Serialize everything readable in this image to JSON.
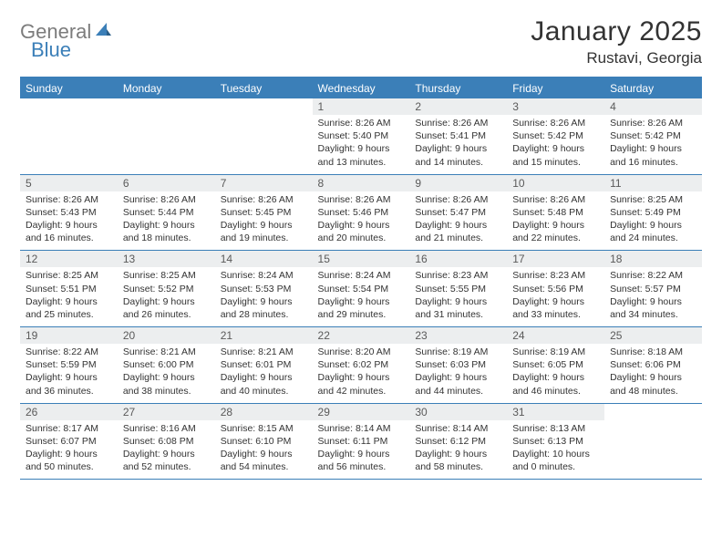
{
  "logo": {
    "part1": "General",
    "part2": "Blue"
  },
  "title": "January 2025",
  "location": "Rustavi, Georgia",
  "colors": {
    "accent": "#3b7fb8",
    "header_bg": "#3b7fb8",
    "header_text": "#ffffff",
    "daynum_bg": "#eceeef",
    "text": "#333333",
    "logo_gray": "#7c7c7c"
  },
  "day_labels": [
    "Sunday",
    "Monday",
    "Tuesday",
    "Wednesday",
    "Thursday",
    "Friday",
    "Saturday"
  ],
  "weeks": [
    [
      {
        "n": "",
        "lines": []
      },
      {
        "n": "",
        "lines": []
      },
      {
        "n": "",
        "lines": []
      },
      {
        "n": "1",
        "lines": [
          "Sunrise: 8:26 AM",
          "Sunset: 5:40 PM",
          "Daylight: 9 hours",
          "and 13 minutes."
        ]
      },
      {
        "n": "2",
        "lines": [
          "Sunrise: 8:26 AM",
          "Sunset: 5:41 PM",
          "Daylight: 9 hours",
          "and 14 minutes."
        ]
      },
      {
        "n": "3",
        "lines": [
          "Sunrise: 8:26 AM",
          "Sunset: 5:42 PM",
          "Daylight: 9 hours",
          "and 15 minutes."
        ]
      },
      {
        "n": "4",
        "lines": [
          "Sunrise: 8:26 AM",
          "Sunset: 5:42 PM",
          "Daylight: 9 hours",
          "and 16 minutes."
        ]
      }
    ],
    [
      {
        "n": "5",
        "lines": [
          "Sunrise: 8:26 AM",
          "Sunset: 5:43 PM",
          "Daylight: 9 hours",
          "and 16 minutes."
        ]
      },
      {
        "n": "6",
        "lines": [
          "Sunrise: 8:26 AM",
          "Sunset: 5:44 PM",
          "Daylight: 9 hours",
          "and 18 minutes."
        ]
      },
      {
        "n": "7",
        "lines": [
          "Sunrise: 8:26 AM",
          "Sunset: 5:45 PM",
          "Daylight: 9 hours",
          "and 19 minutes."
        ]
      },
      {
        "n": "8",
        "lines": [
          "Sunrise: 8:26 AM",
          "Sunset: 5:46 PM",
          "Daylight: 9 hours",
          "and 20 minutes."
        ]
      },
      {
        "n": "9",
        "lines": [
          "Sunrise: 8:26 AM",
          "Sunset: 5:47 PM",
          "Daylight: 9 hours",
          "and 21 minutes."
        ]
      },
      {
        "n": "10",
        "lines": [
          "Sunrise: 8:26 AM",
          "Sunset: 5:48 PM",
          "Daylight: 9 hours",
          "and 22 minutes."
        ]
      },
      {
        "n": "11",
        "lines": [
          "Sunrise: 8:25 AM",
          "Sunset: 5:49 PM",
          "Daylight: 9 hours",
          "and 24 minutes."
        ]
      }
    ],
    [
      {
        "n": "12",
        "lines": [
          "Sunrise: 8:25 AM",
          "Sunset: 5:51 PM",
          "Daylight: 9 hours",
          "and 25 minutes."
        ]
      },
      {
        "n": "13",
        "lines": [
          "Sunrise: 8:25 AM",
          "Sunset: 5:52 PM",
          "Daylight: 9 hours",
          "and 26 minutes."
        ]
      },
      {
        "n": "14",
        "lines": [
          "Sunrise: 8:24 AM",
          "Sunset: 5:53 PM",
          "Daylight: 9 hours",
          "and 28 minutes."
        ]
      },
      {
        "n": "15",
        "lines": [
          "Sunrise: 8:24 AM",
          "Sunset: 5:54 PM",
          "Daylight: 9 hours",
          "and 29 minutes."
        ]
      },
      {
        "n": "16",
        "lines": [
          "Sunrise: 8:23 AM",
          "Sunset: 5:55 PM",
          "Daylight: 9 hours",
          "and 31 minutes."
        ]
      },
      {
        "n": "17",
        "lines": [
          "Sunrise: 8:23 AM",
          "Sunset: 5:56 PM",
          "Daylight: 9 hours",
          "and 33 minutes."
        ]
      },
      {
        "n": "18",
        "lines": [
          "Sunrise: 8:22 AM",
          "Sunset: 5:57 PM",
          "Daylight: 9 hours",
          "and 34 minutes."
        ]
      }
    ],
    [
      {
        "n": "19",
        "lines": [
          "Sunrise: 8:22 AM",
          "Sunset: 5:59 PM",
          "Daylight: 9 hours",
          "and 36 minutes."
        ]
      },
      {
        "n": "20",
        "lines": [
          "Sunrise: 8:21 AM",
          "Sunset: 6:00 PM",
          "Daylight: 9 hours",
          "and 38 minutes."
        ]
      },
      {
        "n": "21",
        "lines": [
          "Sunrise: 8:21 AM",
          "Sunset: 6:01 PM",
          "Daylight: 9 hours",
          "and 40 minutes."
        ]
      },
      {
        "n": "22",
        "lines": [
          "Sunrise: 8:20 AM",
          "Sunset: 6:02 PM",
          "Daylight: 9 hours",
          "and 42 minutes."
        ]
      },
      {
        "n": "23",
        "lines": [
          "Sunrise: 8:19 AM",
          "Sunset: 6:03 PM",
          "Daylight: 9 hours",
          "and 44 minutes."
        ]
      },
      {
        "n": "24",
        "lines": [
          "Sunrise: 8:19 AM",
          "Sunset: 6:05 PM",
          "Daylight: 9 hours",
          "and 46 minutes."
        ]
      },
      {
        "n": "25",
        "lines": [
          "Sunrise: 8:18 AM",
          "Sunset: 6:06 PM",
          "Daylight: 9 hours",
          "and 48 minutes."
        ]
      }
    ],
    [
      {
        "n": "26",
        "lines": [
          "Sunrise: 8:17 AM",
          "Sunset: 6:07 PM",
          "Daylight: 9 hours",
          "and 50 minutes."
        ]
      },
      {
        "n": "27",
        "lines": [
          "Sunrise: 8:16 AM",
          "Sunset: 6:08 PM",
          "Daylight: 9 hours",
          "and 52 minutes."
        ]
      },
      {
        "n": "28",
        "lines": [
          "Sunrise: 8:15 AM",
          "Sunset: 6:10 PM",
          "Daylight: 9 hours",
          "and 54 minutes."
        ]
      },
      {
        "n": "29",
        "lines": [
          "Sunrise: 8:14 AM",
          "Sunset: 6:11 PM",
          "Daylight: 9 hours",
          "and 56 minutes."
        ]
      },
      {
        "n": "30",
        "lines": [
          "Sunrise: 8:14 AM",
          "Sunset: 6:12 PM",
          "Daylight: 9 hours",
          "and 58 minutes."
        ]
      },
      {
        "n": "31",
        "lines": [
          "Sunrise: 8:13 AM",
          "Sunset: 6:13 PM",
          "Daylight: 10 hours",
          "and 0 minutes."
        ]
      },
      {
        "n": "",
        "lines": []
      }
    ]
  ]
}
